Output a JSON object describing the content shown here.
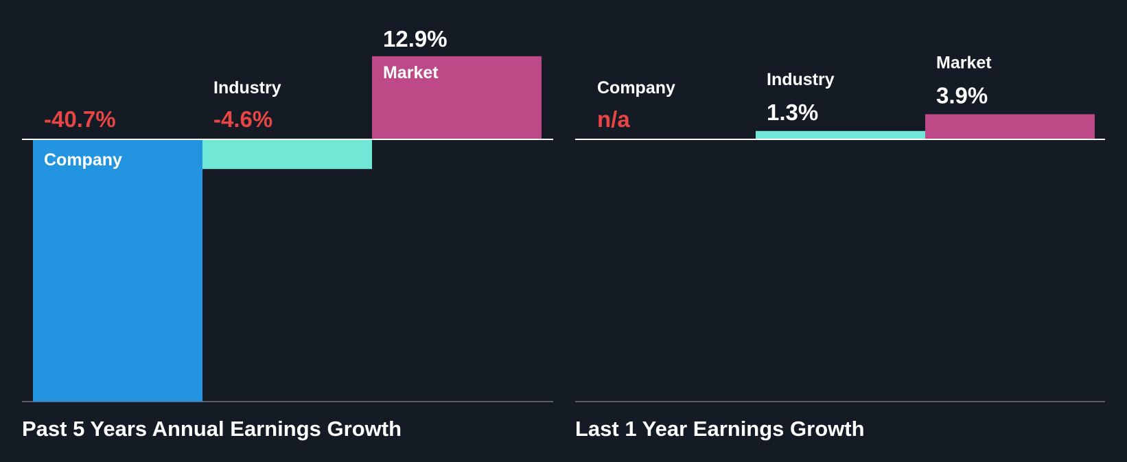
{
  "colors": {
    "background": "#151b24",
    "company": "#2394e0",
    "industry": "#71e7d6",
    "market": "#bd4a87",
    "label_text": "#ffffff",
    "negative_text": "#e84545",
    "positive_text": "#ffffff",
    "na_text": "#e84545",
    "zero_line": "#ffffff",
    "base_line": "#5a5f68"
  },
  "chart_data": [
    {
      "type": "bar",
      "title": "Past 5 Years Annual Earnings Growth",
      "categories": [
        "Company",
        "Industry",
        "Market"
      ],
      "values": [
        -40.7,
        -4.6,
        12.9
      ],
      "value_labels": [
        "-40.7%",
        "-4.6%",
        "12.9%"
      ],
      "ylim": [
        -40.7,
        12.9
      ],
      "unit": "%"
    },
    {
      "type": "bar",
      "title": "Last 1 Year Earnings Growth",
      "categories": [
        "Company",
        "Industry",
        "Market"
      ],
      "values": [
        null,
        1.3,
        3.9
      ],
      "value_labels": [
        "n/a",
        "1.3%",
        "3.9%"
      ],
      "ylim": [
        -40.7,
        12.9
      ],
      "unit": "%"
    }
  ]
}
